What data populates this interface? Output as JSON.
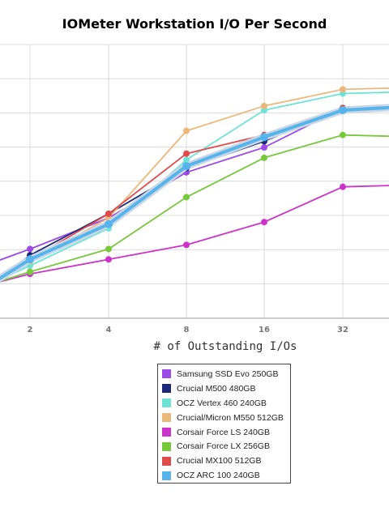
{
  "chart_data": {
    "type": "line",
    "title": "IOMeter Workstation I/O Per Second",
    "xlabel": "# of Outstanding I/Os",
    "ylabel": "",
    "x_ticks": [
      "2",
      "4",
      "8",
      "16",
      "32"
    ],
    "y_axis": {
      "min": 0,
      "max": 1,
      "gridlines": 9,
      "unit": "relative"
    },
    "grid": true,
    "legend_position": "bottom-center",
    "series": [
      {
        "name": "Samsung SSD Evo 250GB",
        "color": "#9b4ae8",
        "values": [
          0.1,
          0.17,
          0.32,
          0.54,
          0.66,
          0.85,
          0.84
        ]
      },
      {
        "name": "Crucial M500 480GB",
        "color": "#1b2a78",
        "values": [
          0.0,
          0.14,
          0.34,
          0.56,
          0.69,
          0.85,
          0.86
        ]
      },
      {
        "name": "OCZ Vertex 460 240GB",
        "color": "#6de3d6",
        "values": [
          0.0,
          0.09,
          0.27,
          0.6,
          0.84,
          0.92,
          0.93
        ]
      },
      {
        "name": "Crucial/Micron M550 512GB",
        "color": "#ecb87a",
        "values": [
          0.0,
          0.11,
          0.32,
          0.74,
          0.86,
          0.94,
          0.95
        ]
      },
      {
        "name": "Corsair Force LS 240GB",
        "color": "#cc33c9",
        "values": [
          0.0,
          0.05,
          0.12,
          0.19,
          0.3,
          0.47,
          0.48
        ]
      },
      {
        "name": "Corsair Force LX 256GB",
        "color": "#77c83a",
        "values": [
          0.0,
          0.06,
          0.17,
          0.42,
          0.61,
          0.72,
          0.71
        ]
      },
      {
        "name": "Crucial MX100 512GB",
        "color": "#e04a4a",
        "values": [
          0.0,
          0.12,
          0.34,
          0.63,
          0.72,
          0.85,
          0.86
        ]
      },
      {
        "name": "OCZ ARC 100 240GB",
        "color": "#56b4ec",
        "values": [
          0.0,
          0.12,
          0.29,
          0.57,
          0.71,
          0.84,
          0.86
        ]
      }
    ]
  },
  "legend": {
    "items": [
      "Samsung SSD Evo 250GB",
      "Crucial M500 480GB",
      "OCZ Vertex 460 240GB",
      "Crucial/Micron M550 512GB",
      "Corsair Force LS 240GB",
      "Corsair Force LX 256GB",
      "Crucial MX100 512GB",
      "OCZ ARC 100 240GB"
    ]
  }
}
